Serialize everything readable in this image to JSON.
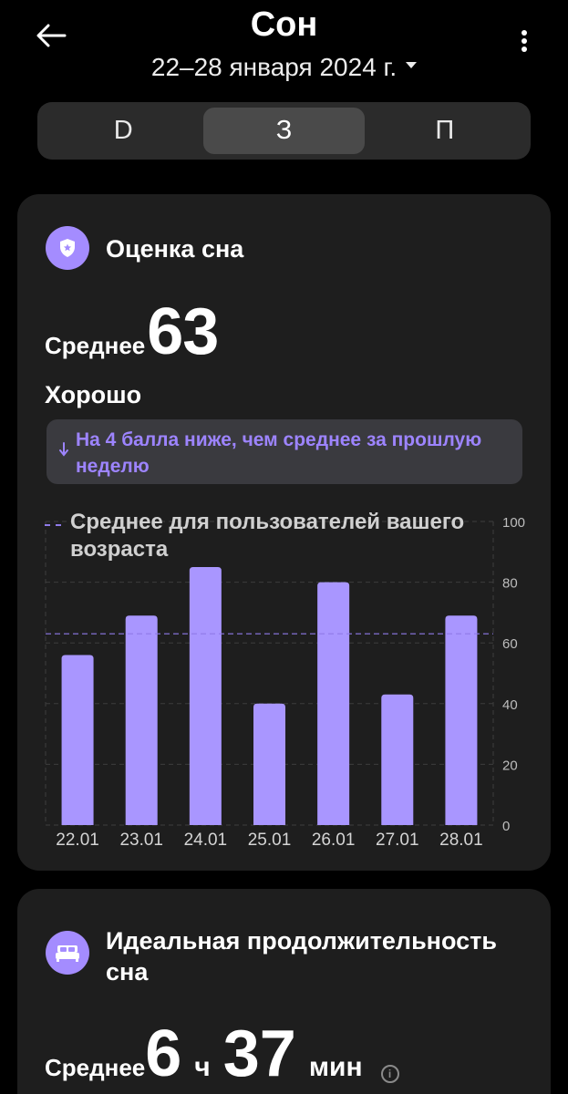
{
  "header": {
    "title": "Сон",
    "date_range": "22–28 января 2024 г."
  },
  "tabs": [
    {
      "label": "D",
      "active": false
    },
    {
      "label": "З",
      "active": true
    },
    {
      "label": "П",
      "active": false
    }
  ],
  "sleep_score": {
    "title": "Оценка сна",
    "icon": "shield-star-icon",
    "average_label": "Среднее",
    "average_value": "63",
    "quality": "Хорошо",
    "delta_text": "На 4 балла ниже, чем среднее за прошлую неделю",
    "legend": "Среднее для пользователей вашего возраста"
  },
  "chart_data": {
    "type": "bar",
    "categories": [
      "22.01",
      "23.01",
      "24.01",
      "25.01",
      "26.01",
      "27.01",
      "28.01"
    ],
    "values": [
      56,
      69,
      85,
      40,
      80,
      43,
      69
    ],
    "reference_line": {
      "label": "Среднее для пользователей вашего возраста",
      "value": 63
    },
    "yticks": [
      "100",
      "80",
      "60",
      "40",
      "20",
      "0"
    ],
    "ylim": [
      0,
      100
    ],
    "grid": true,
    "bar_color": "#a996ff",
    "reference_color": "#8f7ae8"
  },
  "ideal_duration": {
    "title": "Идеальная продолжительность сна",
    "icon": "bed-icon",
    "average_label": "Среднее",
    "hours": "6",
    "hours_unit": "ч",
    "minutes": "37",
    "minutes_unit": "мин"
  },
  "colors": {
    "accent": "#a48cff",
    "delta_text": "#9d84ff",
    "card_bg": "#1e1e1e",
    "page_bg": "#000000"
  }
}
